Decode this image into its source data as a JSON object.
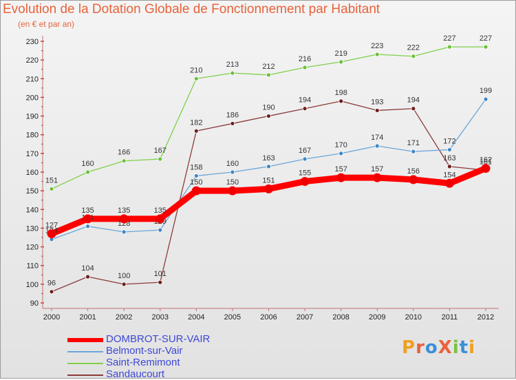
{
  "title": "Evolution de la Dotation Globale de Fonctionnement par Habitant",
  "subtitle": "(en € et par an)",
  "logo": {
    "text": "ProXiti",
    "letters": [
      "P",
      "r",
      "o",
      "X",
      "i",
      "t",
      "i"
    ],
    "colors": [
      "#f0a020",
      "#e8623a",
      "#3a8fd8",
      "#e8623a",
      "#7ac142",
      "#3a8fd8",
      "#f0a020"
    ]
  },
  "chart_data": {
    "type": "line",
    "title": "Evolution de la Dotation Globale de Fonctionnement par Habitant",
    "subtitle": "(en € et par an)",
    "xlabel": "",
    "ylabel": "",
    "ylim": [
      90,
      230
    ],
    "yticks": [
      90,
      100,
      110,
      120,
      130,
      140,
      150,
      160,
      170,
      180,
      190,
      200,
      210,
      220,
      230
    ],
    "grid": false,
    "legend_position": "bottom-left",
    "x": [
      "2000",
      "2001",
      "2002",
      "2003",
      "2004",
      "2005",
      "2006",
      "2007",
      "2008",
      "2009",
      "2010",
      "2011",
      "2012"
    ],
    "series": [
      {
        "name": "Saint-Remimont",
        "color": "#7dd04a",
        "dot": "#6cc03a",
        "values": [
          151,
          160,
          166,
          167,
          210,
          213,
          212,
          216,
          219,
          223,
          222,
          227,
          227
        ]
      },
      {
        "name": "Sandaucourt",
        "color": "#8a3a3a",
        "dot": "#6e1e1e",
        "values": [
          96,
          104,
          100,
          101,
          182,
          186,
          190,
          194,
          198,
          193,
          194,
          163,
          161
        ]
      },
      {
        "name": "Belmont-sur-Vair",
        "color": "#6aa6d8",
        "dot": "#3d86c6",
        "values": [
          124,
          131,
          128,
          129,
          158,
          160,
          163,
          167,
          170,
          174,
          171,
          172,
          199
        ]
      },
      {
        "name": "DOMBROT-SUR-VAIR",
        "color": "#ff0000",
        "dot": "#ee0000",
        "values": [
          127,
          135,
          135,
          135,
          150,
          150,
          151,
          155,
          157,
          157,
          156,
          154,
          162
        ]
      }
    ],
    "legend": [
      {
        "name": "DOMBROT-SUR-VAIR",
        "color": "#ff0000",
        "thick": true
      },
      {
        "name": "Belmont-sur-Vair",
        "color": "#6aa6d8",
        "thick": false
      },
      {
        "name": "Saint-Remimont",
        "color": "#7dd04a",
        "thick": false
      },
      {
        "name": "Sandaucourt",
        "color": "#8a3a3a",
        "thick": false
      }
    ]
  }
}
